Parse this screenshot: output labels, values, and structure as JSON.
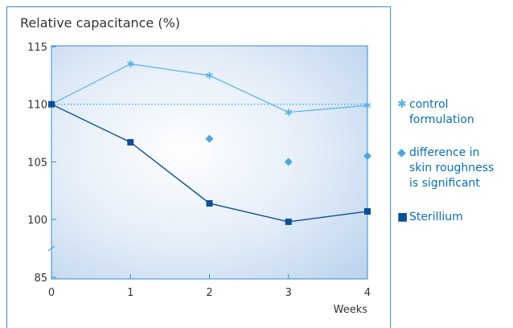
{
  "chart_data": {
    "type": "line",
    "title": "Relative capacitance (%)",
    "xlabel": "Weeks",
    "x": [
      0,
      1,
      2,
      3,
      4
    ],
    "y_ticks": [
      "85",
      "100",
      "105",
      "110",
      "115"
    ],
    "y_tick_values": [
      85,
      100,
      105,
      110,
      115
    ],
    "y_axis_break": "between 85 and 100",
    "reference_line": 110,
    "grid": false,
    "legend_position": "right",
    "series": [
      {
        "name": "control formulation",
        "marker": "asterisk",
        "color": "#5ab0e6",
        "values": [
          110,
          113.5,
          112.5,
          109.3,
          109.9
        ]
      },
      {
        "name": "difference in skin roughness is significant",
        "marker": "diamond",
        "color": "#4fa6df",
        "x": [
          2,
          3,
          4
        ],
        "values": [
          107,
          105,
          105.5
        ]
      },
      {
        "name": "Sterillium",
        "marker": "square",
        "color": "#0d4f93",
        "values": [
          110,
          106.7,
          101.4,
          99.4,
          100.7
        ]
      }
    ]
  },
  "legend": {
    "control": "control\nformulation",
    "diamond": "difference in\nskin roughness\nis significant",
    "sterillium": "Sterillium"
  },
  "colors": {
    "frame": "#3a8ccc",
    "plot_bg_center": "#ffffff",
    "plot_bg_edge": "#c9dcf1"
  }
}
